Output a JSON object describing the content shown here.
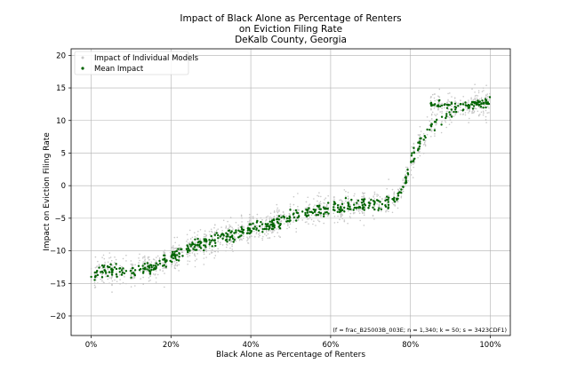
{
  "chart_data": {
    "type": "scatter",
    "title_lines": [
      "Impact of Black Alone as Percentage of Renters",
      "on Eviction Filing Rate",
      "DeKalb County, Georgia"
    ],
    "xlabel": "Black Alone as Percentage of Renters",
    "ylabel": "Impact on Eviction Filing Rate",
    "xlim": [
      -0.05,
      1.05
    ],
    "ylim": [
      -23,
      21
    ],
    "x_ticks": [
      0,
      0.2,
      0.4,
      0.6,
      0.8,
      1.0
    ],
    "x_tick_labels": [
      "0%",
      "20%",
      "40%",
      "60%",
      "80%",
      "100%"
    ],
    "y_ticks": [
      -20,
      -15,
      -10,
      -5,
      0,
      5,
      10,
      15,
      20
    ],
    "y_tick_labels": [
      "−20",
      "−15",
      "−10",
      "−5",
      "0",
      "5",
      "10",
      "15",
      "20"
    ],
    "grid": true,
    "legend_position": "top-left",
    "series": [
      {
        "name": "Impact of Individual Models",
        "color": "#c8c8c8",
        "marker": "dot"
      },
      {
        "name": "Mean Impact",
        "color": "#006400",
        "marker": "dot"
      }
    ],
    "mean_curve_x": [
      0.0,
      0.05,
      0.1,
      0.15,
      0.2,
      0.25,
      0.3,
      0.35,
      0.4,
      0.45,
      0.5,
      0.55,
      0.6,
      0.65,
      0.7,
      0.75,
      0.78,
      0.8,
      0.82,
      0.85,
      0.87,
      0.9,
      0.95,
      1.0
    ],
    "mean_curve_y": [
      -13.5,
      -13.0,
      -13.0,
      -12.5,
      -11.0,
      -9.5,
      -8.5,
      -7.5,
      -6.5,
      -6.0,
      -5.0,
      -4.0,
      -3.5,
      -3.0,
      -3.0,
      -2.5,
      -1.0,
      4.0,
      6.0,
      8.5,
      10.0,
      11.5,
      12.5,
      13.0
    ],
    "annotation": "(f = frac_B25003B_003E; n = 1,340; k = 50; s = 3423CDF1)"
  },
  "colors": {
    "individual": "#c8c8c8",
    "mean": "#006400",
    "grid": "#b0b0b0"
  }
}
